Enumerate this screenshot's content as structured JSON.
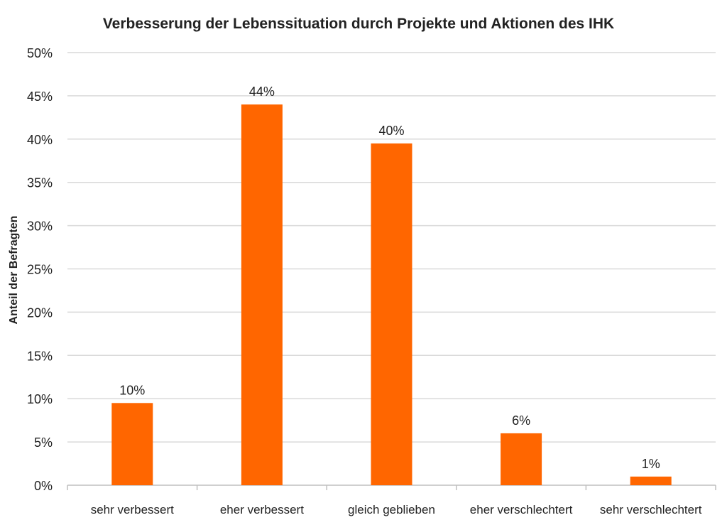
{
  "chart_data": {
    "type": "bar",
    "title": "Verbesserung der Lebenssituation durch Projekte und Aktionen des IHK",
    "xlabel": "",
    "ylabel": "Anteil der Befragten",
    "categories": [
      "sehr verbessert",
      "eher verbessert",
      "gleich geblieben",
      "eher verschlechtert",
      "sehr verschlechtert"
    ],
    "values": [
      9.5,
      44,
      39.5,
      6,
      1
    ],
    "data_labels": [
      "10%",
      "44%",
      "40%",
      "6%",
      "1%"
    ],
    "ylim": [
      0,
      50
    ],
    "yticks": [
      "0%",
      "5%",
      "10%",
      "15%",
      "20%",
      "25%",
      "30%",
      "35%",
      "40%",
      "45%",
      "50%"
    ],
    "grid": true,
    "legend": "none",
    "bar_color": "#FF6600"
  }
}
